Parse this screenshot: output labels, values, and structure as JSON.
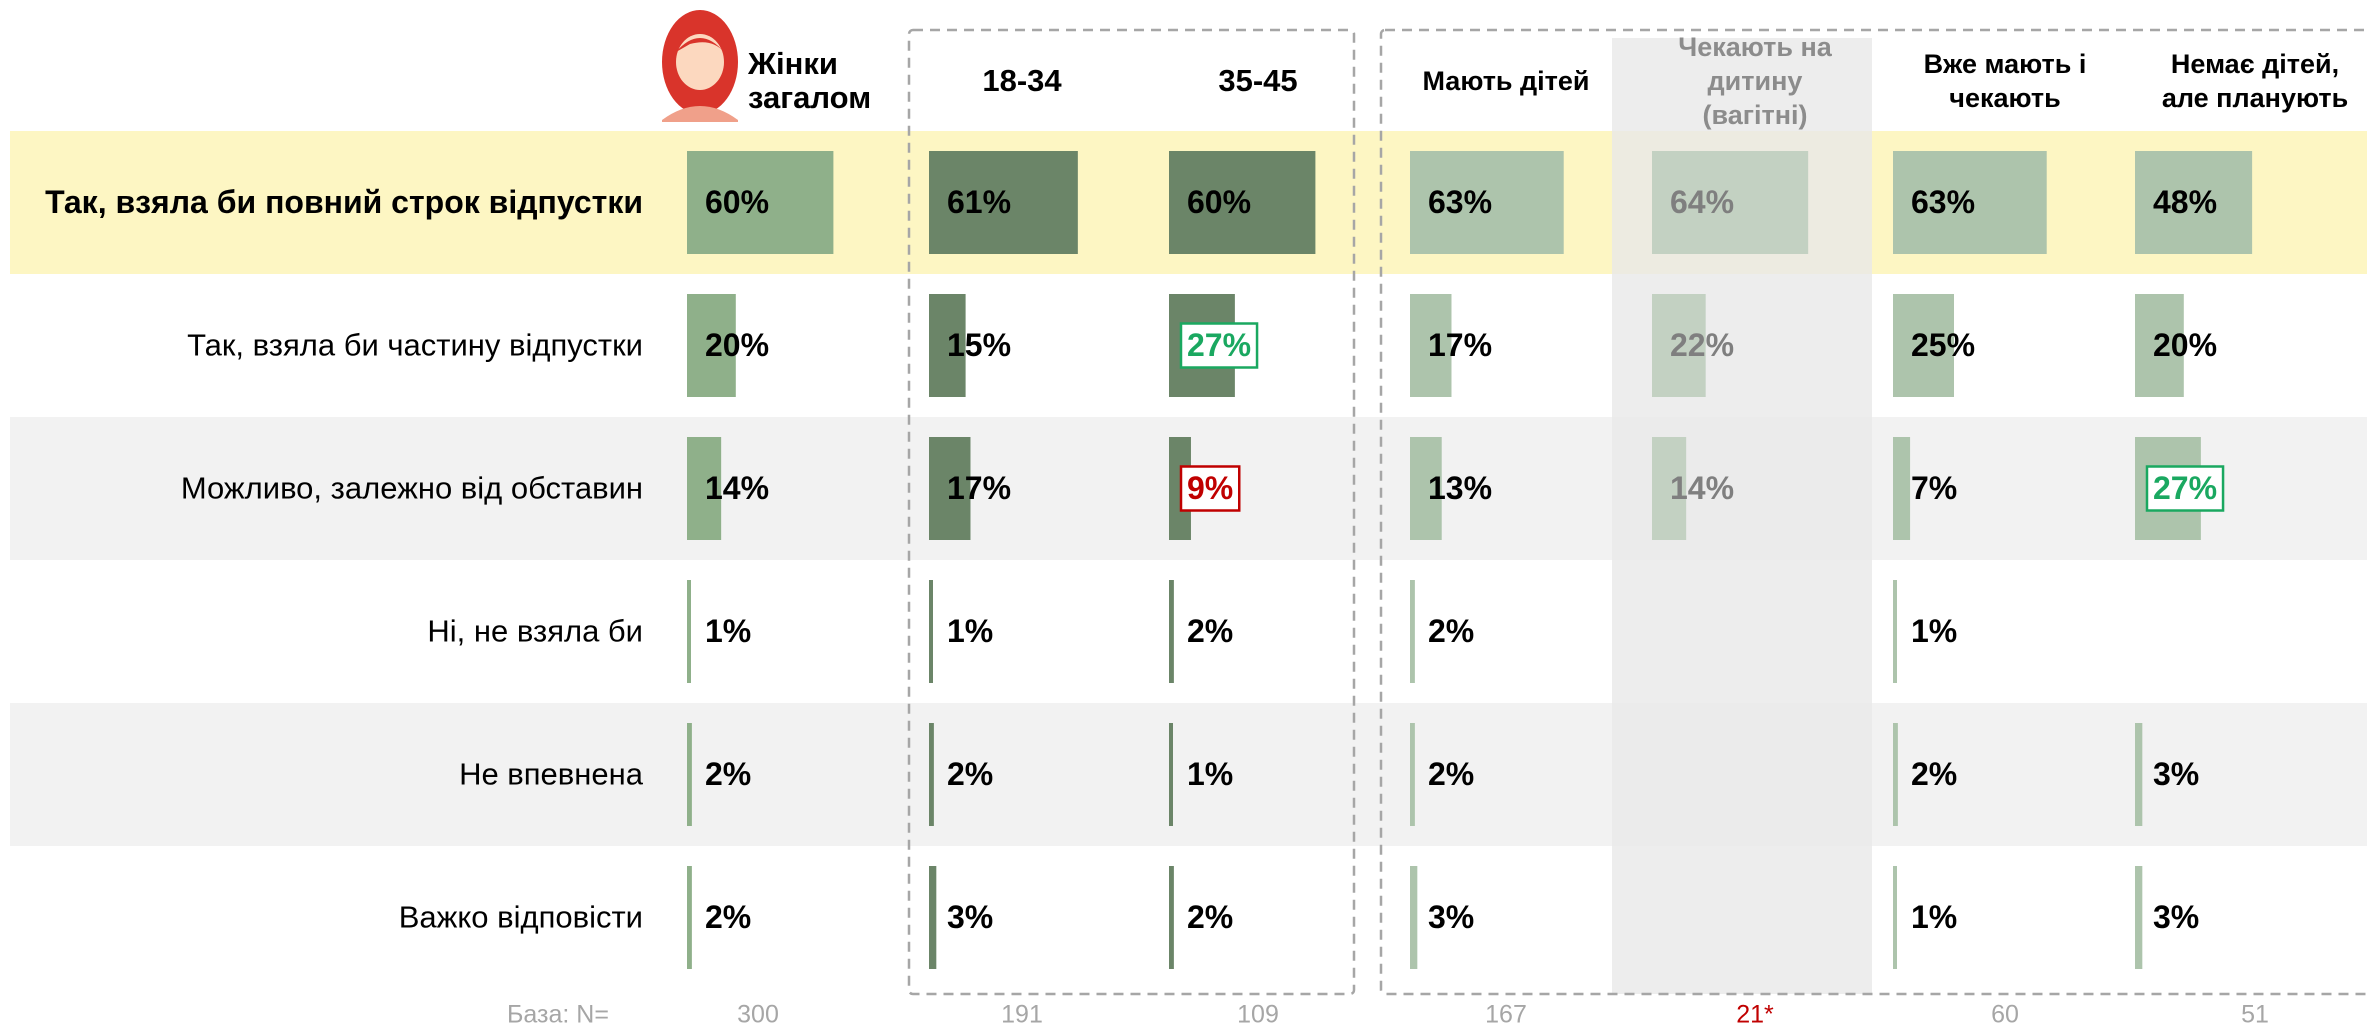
{
  "chart_data": {
    "type": "bar",
    "categories": [
      "Так, взяла би повний строк відпустки",
      "Так, взяла би частину відпустки",
      "Можливо, залежно від обставин",
      "Ні, не взяла би",
      "Не впевнена",
      "Важко відповісти"
    ],
    "series": [
      {
        "name": "Жінки загалом",
        "color": "#8fb08a",
        "values": [
          60,
          20,
          14,
          1,
          2,
          2
        ],
        "value_labels": [
          "60%",
          "20%",
          "14%",
          "1%",
          "2%",
          "2%"
        ]
      },
      {
        "name": "18-34",
        "color": "#6b8568",
        "values": [
          61,
          15,
          17,
          1,
          2,
          3
        ],
        "value_labels": [
          "61%",
          "15%",
          "17%",
          "1%",
          "2%",
          "3%"
        ]
      },
      {
        "name": "35-45",
        "color": "#6b8568",
        "values": [
          60,
          27,
          9,
          2,
          1,
          2
        ],
        "value_labels": [
          "60%",
          "27%",
          "9%",
          "2%",
          "1%",
          "2%"
        ]
      },
      {
        "name": "Мають дітей",
        "color": "#adc4ac",
        "values": [
          63,
          17,
          13,
          2,
          2,
          3
        ],
        "value_labels": [
          "63%",
          "17%",
          "13%",
          "2%",
          "2%",
          "3%"
        ]
      },
      {
        "name": "Чекають на дитину (вагітні)",
        "color": "#c3d1c2",
        "values": [
          64,
          22,
          14,
          null,
          null,
          null
        ],
        "value_labels": [
          "64%",
          "22%",
          "14%",
          null,
          null,
          null
        ]
      },
      {
        "name": "Вже мають і чекають",
        "color": "#adc4ac",
        "values": [
          63,
          25,
          7,
          1,
          2,
          1
        ],
        "value_labels": [
          "63%",
          "25%",
          "7%",
          "1%",
          "2%",
          "1%"
        ]
      },
      {
        "name": "Немає дітей, але планують",
        "color": "#adc4ac",
        "values": [
          48,
          20,
          27,
          null,
          3,
          3
        ],
        "value_labels": [
          "48%",
          "20%",
          "27%",
          null,
          "3%",
          "3%"
        ]
      }
    ],
    "highlights": [
      {
        "series": 2,
        "row": 1,
        "color": "#1aa860"
      },
      {
        "series": 2,
        "row": 2,
        "color": "#c00000"
      },
      {
        "series": 6,
        "row": 2,
        "color": "#1aa860"
      }
    ],
    "base_label": "База: N=",
    "bases": [
      300,
      191,
      109,
      167,
      {
        "value": 21,
        "label": "21*"
      },
      60,
      51
    ]
  }
}
